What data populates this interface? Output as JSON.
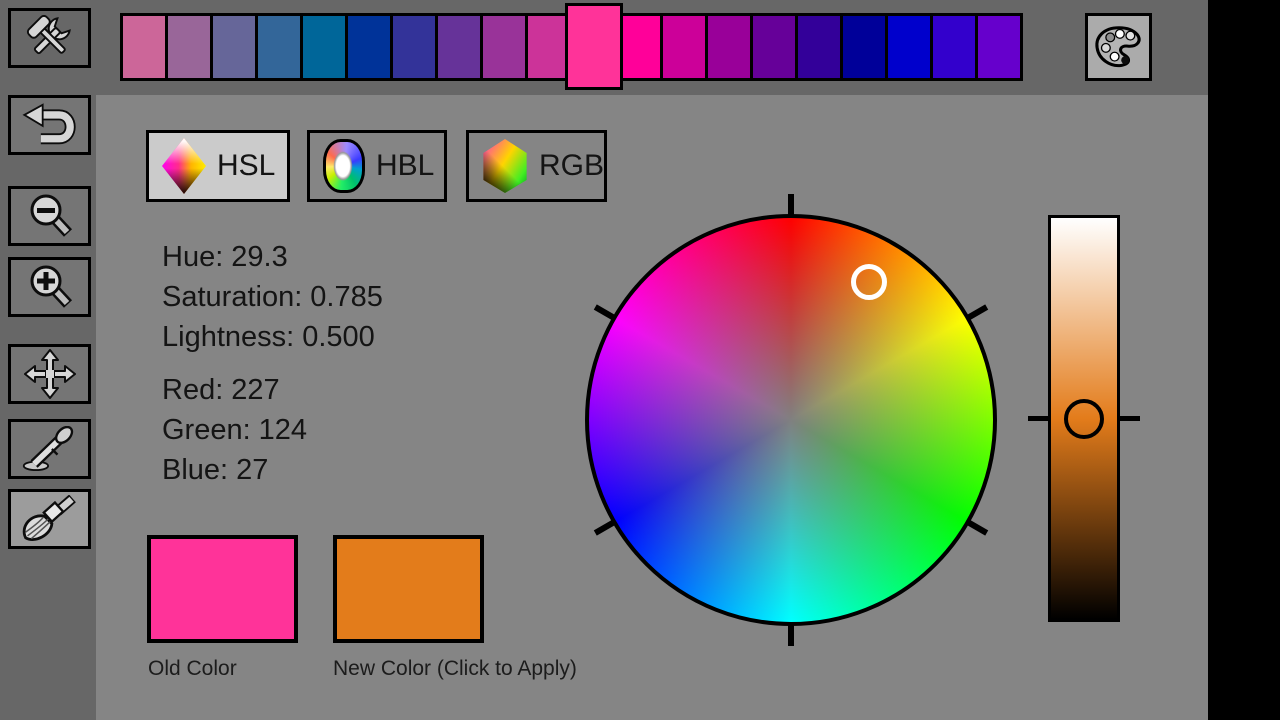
{
  "palette_bar": {
    "colors": [
      "#cc6699",
      "#996699",
      "#666699",
      "#336699",
      "#006699",
      "#003399",
      "#333399",
      "#663399",
      "#993399",
      "#cc3399",
      "#ff3399",
      "#ff0099",
      "#cc0099",
      "#990099",
      "#660099",
      "#330099",
      "#000099",
      "#0000cc",
      "#3300cc",
      "#6600cc"
    ],
    "selected_index": 10
  },
  "toolbar": {
    "buttons": [
      {
        "icon": "tools-icon",
        "selected": false
      },
      {
        "icon": "undo-icon",
        "selected": false
      },
      {
        "icon": "zoom-out-icon",
        "selected": false
      },
      {
        "icon": "zoom-in-icon",
        "selected": false
      },
      {
        "icon": "move-icon",
        "selected": false
      },
      {
        "icon": "eyedropper-icon",
        "selected": false
      },
      {
        "icon": "brush-icon",
        "selected": true
      }
    ]
  },
  "tabs": [
    {
      "label": "HSL",
      "selected": true
    },
    {
      "label": "HBL",
      "selected": false
    },
    {
      "label": "RGB",
      "selected": false
    }
  ],
  "readout": {
    "hsl": [
      {
        "label": "Hue:",
        "value": "29.3"
      },
      {
        "label": "Saturation:",
        "value": "0.785"
      },
      {
        "label": "Lightness:",
        "value": "0.500"
      }
    ],
    "rgb": [
      {
        "label": "Red:",
        "value": "227"
      },
      {
        "label": "Green:",
        "value": "124"
      },
      {
        "label": "Blue:",
        "value": "27"
      }
    ]
  },
  "swatches": {
    "old": {
      "label": "Old Color",
      "color": "#ff3399"
    },
    "new": {
      "label": "New Color (Click to Apply)",
      "color": "#e37c1b"
    }
  },
  "picker": {
    "hue_deg": 29.3,
    "saturation": 0.785,
    "lightness": 0.5
  },
  "system_bar": {
    "icons": [
      "overflow-menu-icon",
      "recent-apps-icon",
      "home-icon",
      "back-icon"
    ]
  },
  "theme": {
    "bar_bg": "#676767",
    "content_bg": "#858585",
    "button_bg": "#757575",
    "selected_button_bg": "#9c9c9c",
    "selected_tab_bg": "#cbcbcb",
    "system_bar_bg": "#000000",
    "text": "#141414"
  }
}
